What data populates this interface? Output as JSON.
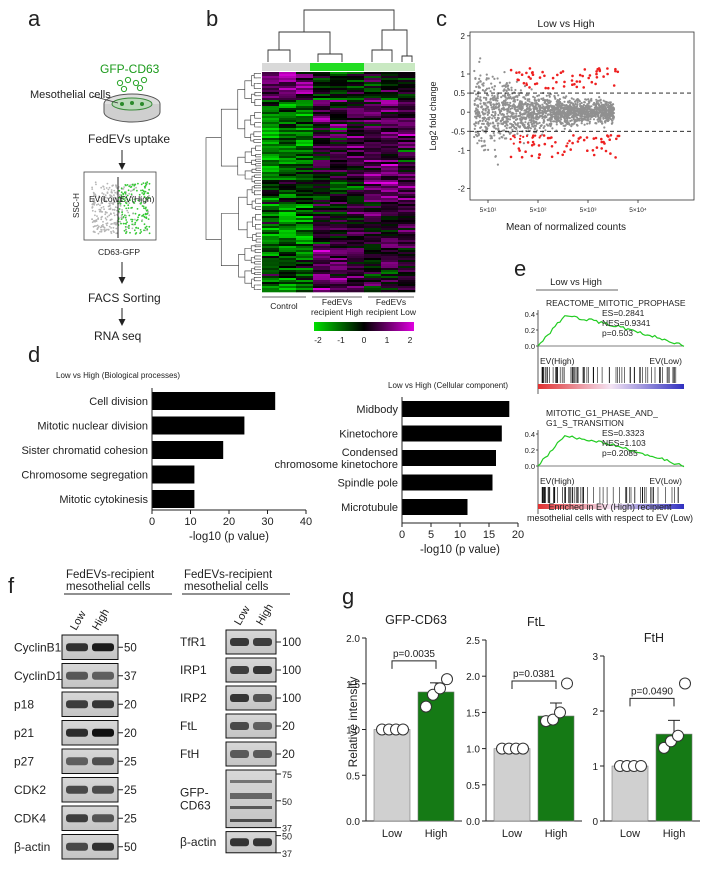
{
  "panels": {
    "a": {
      "letter": "a",
      "dish_label": "GFP-CD63",
      "cells_label": "Mesothelial cells",
      "uptake_label": "FedEVs uptake",
      "facs": {
        "ylabel": "SSC-H",
        "xlabel": "CD63-GFP",
        "gate_low": "EV(Low)",
        "gate_high": "EV(High)"
      },
      "sorting_label": "FACS Sorting",
      "rnaseq_label": "RNA seq"
    },
    "b": {
      "letter": "b",
      "groups": [
        "Control",
        "FedEVs\nrecipient High",
        "FedEVs\nrecipient Low"
      ],
      "group_colors": [
        "#d9d9d9",
        "#22dd22",
        "#c9e9c2"
      ],
      "colorbar_ticks": [
        "-2",
        "-1",
        "0",
        "1",
        "2"
      ],
      "colors": {
        "low": "#00e000",
        "mid": "#000000",
        "high": "#e000e0"
      }
    },
    "c": {
      "letter": "c",
      "chart_data": {
        "type": "scatter",
        "title": "Low vs High",
        "xlabel": "Mean of normalized counts",
        "ylabel": "Log2 fold change",
        "x_ticks": [
          "5×10¹",
          "5×10²",
          "5×10³",
          "5×10⁴"
        ],
        "y_ticks": [
          "2",
          "1",
          "0.5",
          "0",
          "-0.5",
          "-1",
          "-2"
        ],
        "y_tick_values": [
          2,
          1,
          0.5,
          0,
          -0.5,
          -1,
          -2
        ],
        "thresholds": [
          0.5,
          -0.5
        ],
        "ylim": [
          -2.3,
          2.1
        ],
        "colors": {
          "ns": "#909090",
          "sig": "#ee2020"
        }
      }
    },
    "d": {
      "letter": "d",
      "charts": [
        {
          "type": "bar",
          "title": "Low vs High (Biological processes)",
          "categories": [
            "Cell division",
            "Mitotic nuclear division",
            "Sister chromatid cohesion",
            "Chromosome segregation",
            "Mitotic cytokinesis"
          ],
          "values": [
            32,
            24,
            18.5,
            11,
            11
          ],
          "x_ticks": [
            0,
            10,
            20,
            30,
            40
          ],
          "xlim": [
            0,
            40
          ],
          "xlabel": "-log10 (p value)"
        },
        {
          "type": "bar",
          "title": "Low vs High (Cellular component)",
          "categories": [
            "Midbody",
            "Kinetochore",
            "Condensed\nchromosome kinetochore",
            "Spindle pole",
            "Microtubule"
          ],
          "values": [
            18.5,
            17.2,
            16.2,
            15.6,
            11.3
          ],
          "x_ticks": [
            0,
            5,
            10,
            15,
            20
          ],
          "xlim": [
            0,
            20
          ],
          "xlabel": "-log10 (p value)"
        }
      ]
    },
    "e": {
      "letter": "e",
      "title": "Low vs High",
      "plots": [
        {
          "name": "REACTOME_MITOTIC_PROPHASE",
          "stats": [
            "ES=0.2841",
            "NES=0.9341",
            "p=0.503"
          ],
          "ticks": [
            "0.4",
            "0.2",
            "0.0"
          ]
        },
        {
          "name": "MITOTIC_G1_PHASE_AND_\nG1_S_TRANSITION",
          "stats": [
            "ES=0.3323",
            "NES=1.103",
            "p=0.2085"
          ],
          "ticks": [
            "0.4",
            "0.2",
            "0.0"
          ]
        }
      ],
      "left_label": "EV(High)",
      "right_label": "EV(Low)",
      "caption": "Enriched in EV (High) recipient\nmesothelial cells with respect to EV (Low)"
    },
    "f": {
      "letter": "f",
      "blots": [
        {
          "header": "FedEVs-recipient\nmesothelial cells",
          "lanes": [
            "Low",
            "High"
          ],
          "rows": [
            {
              "label": "CyclinB1",
              "marker": "50"
            },
            {
              "label": "CyclinD1",
              "marker": "37"
            },
            {
              "label": "p18",
              "marker": "20"
            },
            {
              "label": "p21",
              "marker": "20"
            },
            {
              "label": "p27",
              "marker": "25"
            },
            {
              "label": "CDK2",
              "marker": "25"
            },
            {
              "label": "CDK4",
              "marker": "25"
            },
            {
              "label": "β-actin",
              "marker": "50"
            }
          ]
        },
        {
          "header": "FedEVs-recipient\nmesothelial cells",
          "lanes": [
            "Low",
            "High"
          ],
          "rows": [
            {
              "label": "TfR1",
              "marker": "100"
            },
            {
              "label": "IRP1",
              "marker": "100"
            },
            {
              "label": "IRP2",
              "marker": "100"
            },
            {
              "label": "FtL",
              "marker": "20"
            },
            {
              "label": "FtH",
              "marker": "20"
            },
            {
              "label": "GFP-\nCD63",
              "marker": "75\n50\n37"
            },
            {
              "label": "β-actin",
              "marker": "50\n37"
            }
          ]
        }
      ]
    },
    "g": {
      "letter": "g",
      "ylabel": "Relative intensity",
      "chart_data": [
        {
          "type": "bar",
          "title": "GFP-CD63",
          "categories": [
            "Low",
            "High"
          ],
          "values": [
            1.0,
            1.41
          ],
          "errors": [
            0.03,
            0.1
          ],
          "points": [
            [
              1,
              1,
              1,
              1
            ],
            [
              1.25,
              1.38,
              1.45,
              1.55
            ]
          ],
          "pvalue": "p=0.0035",
          "ylim": [
            0,
            2.0
          ],
          "y_ticks": [
            "0.0",
            "0.5",
            "1.0",
            "1.5",
            "2.0"
          ]
        },
        {
          "type": "bar",
          "title": "FtL",
          "categories": [
            "Low",
            "High"
          ],
          "values": [
            1.0,
            1.45
          ],
          "errors": [
            0.02,
            0.18
          ],
          "points": [
            [
              1,
              1,
              1,
              1
            ],
            [
              1.38,
              1.4,
              1.5,
              1.9
            ]
          ],
          "pvalue": "p=0.0381",
          "ylim": [
            0,
            2.5
          ],
          "y_ticks": [
            "0.0",
            "0.5",
            "1.0",
            "1.5",
            "2.0",
            "2.5"
          ]
        },
        {
          "type": "bar",
          "title": "FtH",
          "categories": [
            "Low",
            "High"
          ],
          "values": [
            1.0,
            1.58
          ],
          "errors": [
            0.02,
            0.25
          ],
          "points": [
            [
              1,
              1,
              1,
              1
            ],
            [
              1.33,
              1.45,
              1.55,
              2.5
            ]
          ],
          "pvalue": "p=0.0490",
          "ylim": [
            0,
            3.0
          ],
          "y_ticks": [
            "0",
            "1",
            "2",
            "3"
          ]
        }
      ],
      "colors": {
        "low": "#d0d0d0",
        "high": "#157a15"
      }
    }
  }
}
